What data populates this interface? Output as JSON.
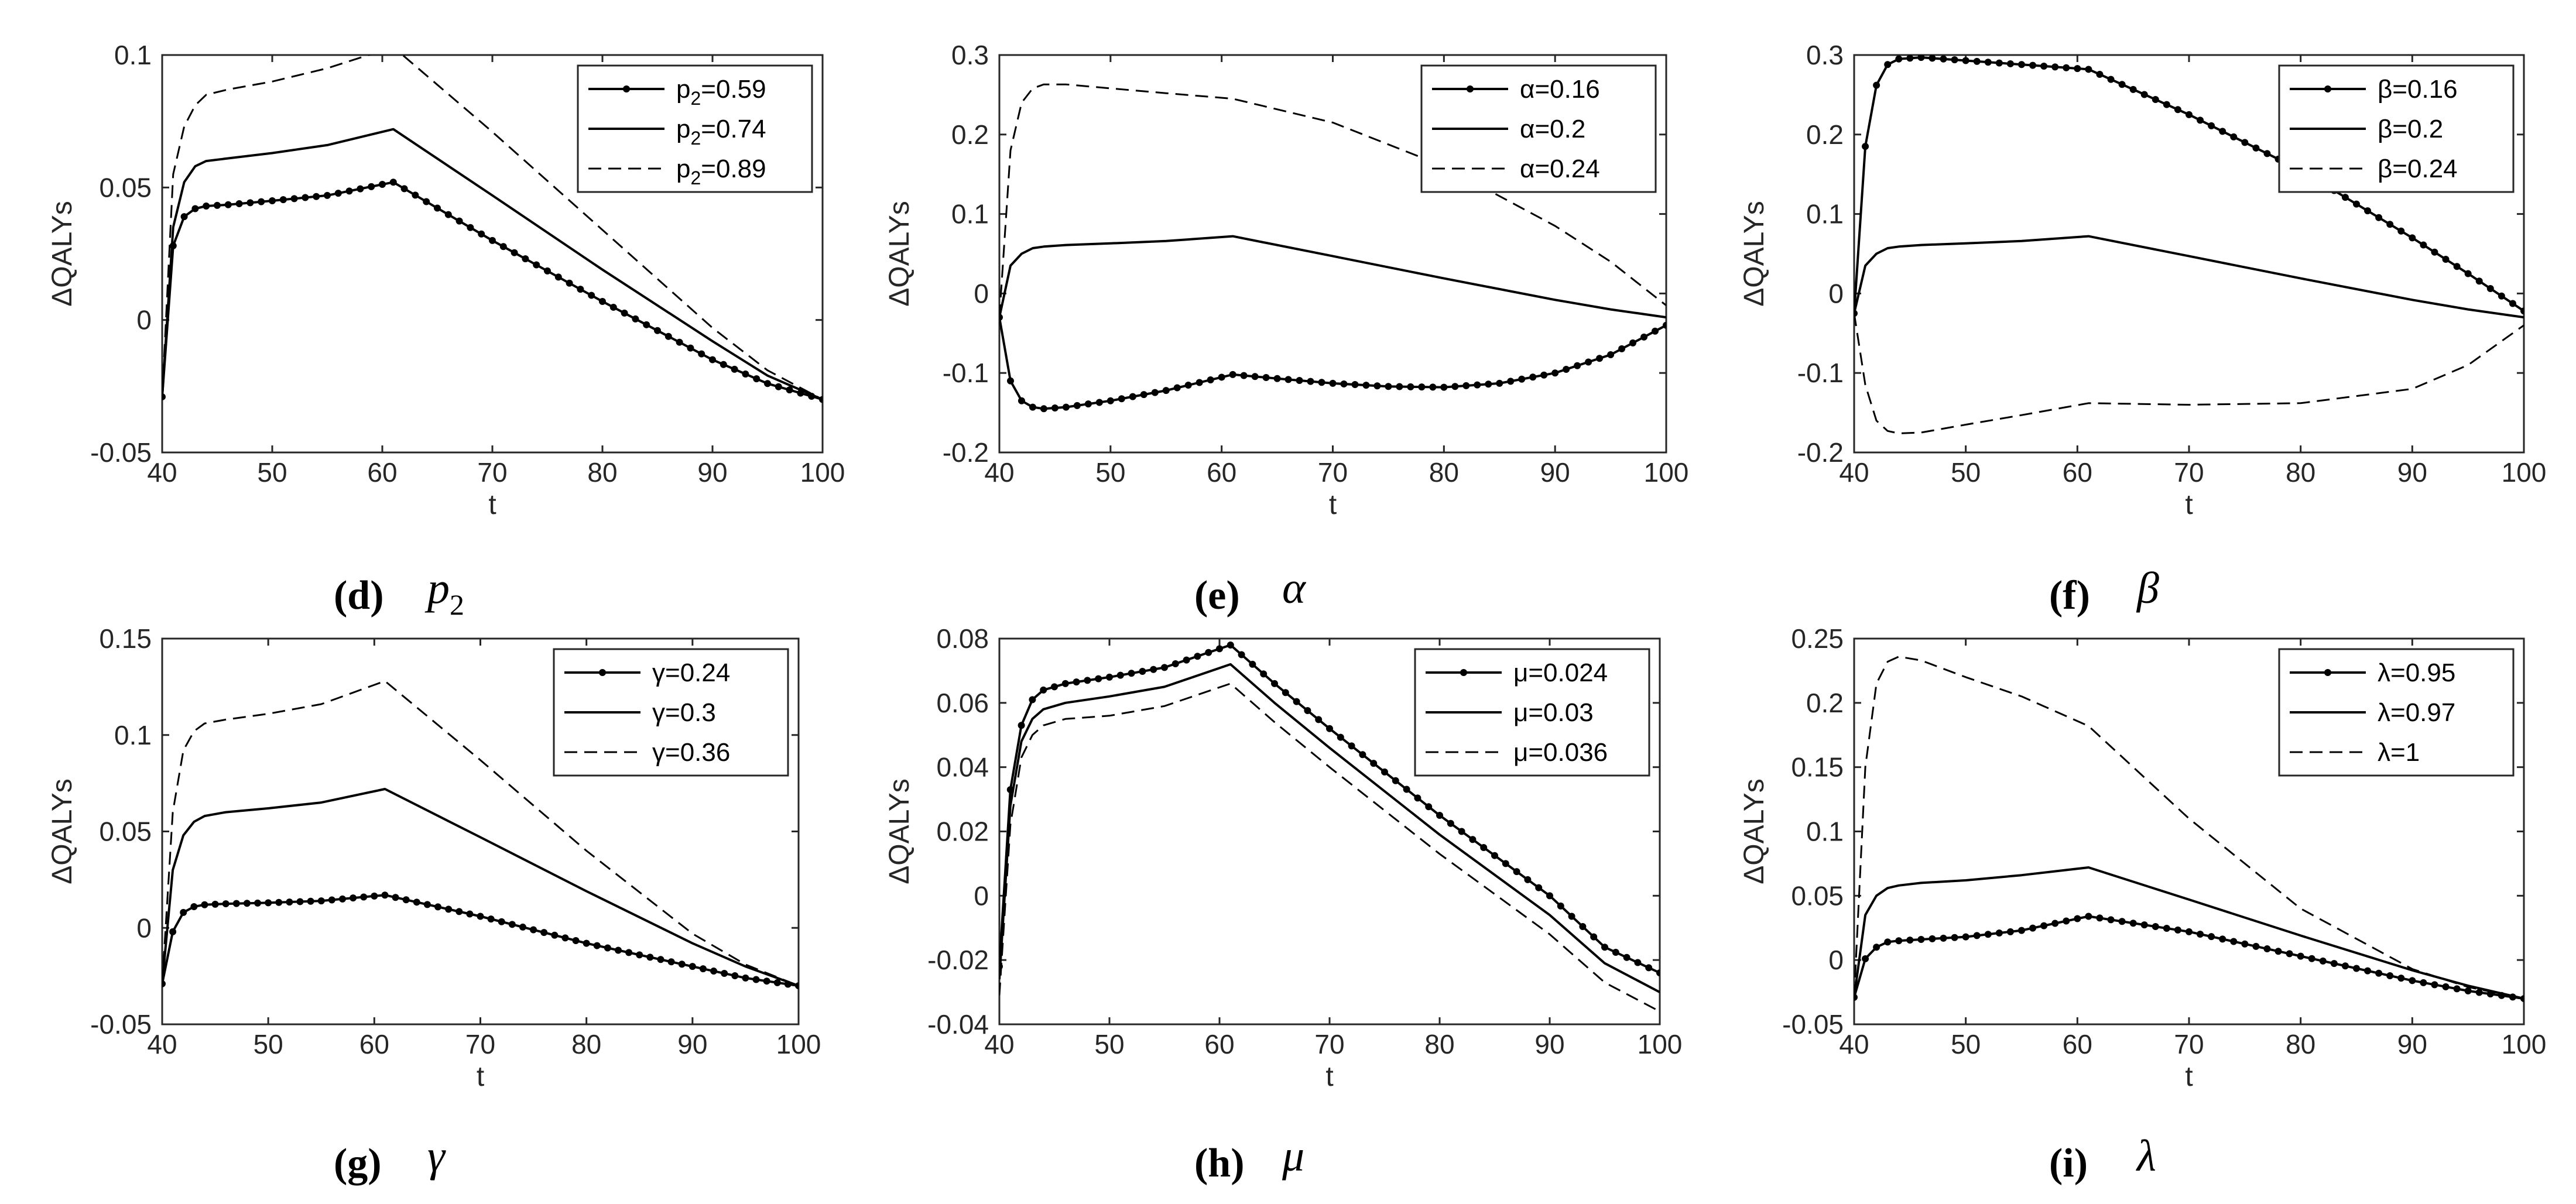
{
  "chart_data": [
    {
      "type": "line",
      "panel_label": "(d)",
      "param_symbol": "p",
      "param_subscript": "2",
      "xlabel": "t",
      "ylabel": "ΔQALYs",
      "xlim": [
        40,
        100
      ],
      "ylim": [
        -0.05,
        0.1
      ],
      "xticks": [
        40,
        50,
        60,
        70,
        80,
        90,
        100
      ],
      "xtick_labels": [
        "40",
        "50",
        "60",
        "70",
        "80",
        "90",
        "100"
      ],
      "yticks": [
        -0.05,
        0,
        0.05,
        0.1
      ],
      "ytick_labels": [
        "-0.05",
        "0",
        "0.05",
        "0.1"
      ],
      "legend_position": "top-right",
      "series": [
        {
          "name": "p",
          "name_sub": "2",
          "name_suffix": "=0.59",
          "style": "solid-dots",
          "x": [
            40,
            41,
            42,
            43,
            44,
            46,
            50,
            55,
            61,
            70,
            80,
            90,
            95,
            100
          ],
          "y": [
            -0.029,
            0.028,
            0.039,
            0.042,
            0.043,
            0.0435,
            0.045,
            0.047,
            0.052,
            0.03,
            0.007,
            -0.015,
            -0.024,
            -0.03
          ]
        },
        {
          "name": "p",
          "name_sub": "2",
          "name_suffix": "=0.74",
          "style": "solid",
          "x": [
            40,
            41,
            42,
            43,
            44,
            46,
            50,
            55,
            61,
            70,
            80,
            90,
            95,
            100
          ],
          "y": [
            -0.029,
            0.035,
            0.052,
            0.058,
            0.06,
            0.061,
            0.063,
            0.066,
            0.072,
            0.047,
            0.019,
            -0.008,
            -0.021,
            -0.03
          ]
        },
        {
          "name": "p",
          "name_sub": "2",
          "name_suffix": "=0.89",
          "style": "dashed",
          "x": [
            40,
            41,
            42,
            43,
            44,
            46,
            50,
            55,
            61,
            70,
            80,
            90,
            95,
            100
          ],
          "y": [
            -0.029,
            0.055,
            0.073,
            0.081,
            0.085,
            0.087,
            0.09,
            0.095,
            0.103,
            0.071,
            0.034,
            -0.003,
            -0.019,
            -0.03
          ]
        }
      ]
    },
    {
      "type": "line",
      "panel_label": "(e)",
      "param_symbol": "α",
      "param_subscript": "",
      "xlabel": "t",
      "ylabel": "ΔQALYs",
      "xlim": [
        40,
        100
      ],
      "ylim": [
        -0.2,
        0.3
      ],
      "xticks": [
        40,
        50,
        60,
        70,
        80,
        90,
        100
      ],
      "xtick_labels": [
        "40",
        "50",
        "60",
        "70",
        "80",
        "90",
        "100"
      ],
      "yticks": [
        -0.2,
        -0.1,
        0,
        0.1,
        0.2,
        0.3
      ],
      "ytick_labels": [
        "-0.2",
        "-0.1",
        "0",
        "0.1",
        "0.2",
        "0.3"
      ],
      "legend_position": "top-right",
      "series": [
        {
          "name": "α=0.16",
          "name_sub": "",
          "name_suffix": "",
          "style": "solid-dots",
          "x": [
            40,
            41,
            42,
            43,
            44,
            46,
            50,
            55,
            61,
            65,
            70,
            75,
            80,
            85,
            90,
            95,
            100
          ],
          "y": [
            -0.03,
            -0.11,
            -0.135,
            -0.143,
            -0.145,
            -0.143,
            -0.135,
            -0.122,
            -0.102,
            -0.107,
            -0.113,
            -0.117,
            -0.118,
            -0.113,
            -0.1,
            -0.077,
            -0.04
          ]
        },
        {
          "name": "α=0.2",
          "name_sub": "",
          "name_suffix": "",
          "style": "solid",
          "x": [
            40,
            41,
            42,
            43,
            44,
            46,
            50,
            55,
            61,
            70,
            80,
            90,
            95,
            100
          ],
          "y": [
            -0.03,
            0.035,
            0.05,
            0.057,
            0.059,
            0.061,
            0.063,
            0.066,
            0.072,
            0.047,
            0.019,
            -0.008,
            -0.02,
            -0.03
          ]
        },
        {
          "name": "α=0.24",
          "name_sub": "",
          "name_suffix": "",
          "style": "dashed",
          "x": [
            40,
            41,
            42,
            43,
            44,
            46,
            50,
            55,
            61,
            70,
            80,
            90,
            95,
            100
          ],
          "y": [
            -0.03,
            0.18,
            0.24,
            0.258,
            0.263,
            0.263,
            0.258,
            0.252,
            0.245,
            0.215,
            0.16,
            0.085,
            0.04,
            -0.015
          ]
        }
      ]
    },
    {
      "type": "line",
      "panel_label": "(f)",
      "param_symbol": "β",
      "param_subscript": "",
      "xlabel": "t",
      "ylabel": "ΔQALYs",
      "xlim": [
        40,
        100
      ],
      "ylim": [
        -0.2,
        0.3
      ],
      "xticks": [
        40,
        50,
        60,
        70,
        80,
        90,
        100
      ],
      "xtick_labels": [
        "40",
        "50",
        "60",
        "70",
        "80",
        "90",
        "100"
      ],
      "yticks": [
        -0.2,
        -0.1,
        0,
        0.1,
        0.2,
        0.3
      ],
      "ytick_labels": [
        "-0.2",
        "-0.1",
        "0",
        "0.1",
        "0.2",
        "0.3"
      ],
      "legend_position": "top-right",
      "series": [
        {
          "name": "β=0.16",
          "name_sub": "",
          "name_suffix": "",
          "style": "solid-dots",
          "x": [
            40,
            41,
            42,
            43,
            44,
            46,
            50,
            55,
            61,
            70,
            80,
            90,
            95,
            100
          ],
          "y": [
            -0.025,
            0.185,
            0.262,
            0.288,
            0.295,
            0.297,
            0.293,
            0.288,
            0.282,
            0.225,
            0.155,
            0.07,
            0.025,
            -0.022
          ]
        },
        {
          "name": "β=0.2",
          "name_sub": "",
          "name_suffix": "",
          "style": "solid",
          "x": [
            40,
            41,
            42,
            43,
            44,
            46,
            50,
            55,
            61,
            70,
            80,
            90,
            95,
            100
          ],
          "y": [
            -0.025,
            0.035,
            0.05,
            0.057,
            0.059,
            0.061,
            0.063,
            0.066,
            0.072,
            0.047,
            0.019,
            -0.008,
            -0.02,
            -0.03
          ]
        },
        {
          "name": "β=0.24",
          "name_sub": "",
          "name_suffix": "",
          "style": "dashed",
          "x": [
            40,
            41,
            42,
            43,
            44,
            46,
            50,
            55,
            61,
            70,
            80,
            90,
            95,
            100
          ],
          "y": [
            -0.025,
            -0.115,
            -0.16,
            -0.173,
            -0.176,
            -0.175,
            -0.165,
            -0.153,
            -0.138,
            -0.14,
            -0.138,
            -0.12,
            -0.09,
            -0.04
          ]
        }
      ]
    },
    {
      "type": "line",
      "panel_label": "(g)",
      "param_symbol": "γ",
      "param_subscript": "",
      "xlabel": "t",
      "ylabel": "ΔQALYs",
      "xlim": [
        40,
        100
      ],
      "ylim": [
        -0.05,
        0.15
      ],
      "xticks": [
        40,
        50,
        60,
        70,
        80,
        90,
        100
      ],
      "xtick_labels": [
        "40",
        "50",
        "60",
        "70",
        "80",
        "90",
        "100"
      ],
      "yticks": [
        -0.05,
        0,
        0.05,
        0.1,
        0.15
      ],
      "ytick_labels": [
        "-0.05",
        "0",
        "0.05",
        "0.1",
        "0.15"
      ],
      "legend_position": "top-right",
      "series": [
        {
          "name": "γ=0.24",
          "name_sub": "",
          "name_suffix": "",
          "style": "solid-dots",
          "x": [
            40,
            41,
            42,
            43,
            44,
            46,
            50,
            55,
            61,
            70,
            80,
            90,
            95,
            100
          ],
          "y": [
            -0.029,
            -0.002,
            0.008,
            0.011,
            0.012,
            0.0125,
            0.013,
            0.014,
            0.017,
            0.006,
            -0.008,
            -0.02,
            -0.026,
            -0.03
          ]
        },
        {
          "name": "γ=0.3",
          "name_sub": "",
          "name_suffix": "",
          "style": "solid",
          "x": [
            40,
            41,
            42,
            43,
            44,
            46,
            50,
            55,
            61,
            70,
            80,
            90,
            95,
            100
          ],
          "y": [
            -0.029,
            0.03,
            0.048,
            0.055,
            0.058,
            0.06,
            0.062,
            0.065,
            0.072,
            0.047,
            0.019,
            -0.008,
            -0.02,
            -0.03
          ]
        },
        {
          "name": "γ=0.36",
          "name_sub": "",
          "name_suffix": "",
          "style": "dashed",
          "x": [
            40,
            41,
            42,
            43,
            44,
            46,
            50,
            55,
            61,
            70,
            80,
            90,
            95,
            100
          ],
          "y": [
            -0.029,
            0.06,
            0.092,
            0.102,
            0.106,
            0.108,
            0.111,
            0.116,
            0.128,
            0.087,
            0.04,
            -0.003,
            -0.019,
            -0.03
          ]
        }
      ]
    },
    {
      "type": "line",
      "panel_label": "(h)",
      "param_symbol": "μ",
      "param_subscript": "",
      "xlabel": "t",
      "ylabel": "ΔQALYs",
      "xlim": [
        40,
        100
      ],
      "ylim": [
        -0.04,
        0.08
      ],
      "xticks": [
        40,
        50,
        60,
        70,
        80,
        90,
        100
      ],
      "xtick_labels": [
        "40",
        "50",
        "60",
        "70",
        "80",
        "90",
        "100"
      ],
      "yticks": [
        -0.04,
        -0.02,
        0,
        0.02,
        0.04,
        0.06,
        0.08
      ],
      "ytick_labels": [
        "-0.04",
        "-0.02",
        "0",
        "0.02",
        "0.04",
        "0.06",
        "0.08"
      ],
      "legend_position": "top-right",
      "series": [
        {
          "name": "μ=0.024",
          "name_sub": "",
          "name_suffix": "",
          "style": "solid-dots",
          "x": [
            40,
            41,
            42,
            43,
            44,
            46,
            50,
            55,
            61,
            65,
            70,
            80,
            90,
            95,
            100
          ],
          "y": [
            -0.022,
            0.033,
            0.053,
            0.061,
            0.064,
            0.066,
            0.068,
            0.071,
            0.078,
            0.066,
            0.052,
            0.025,
            0.0,
            -0.016,
            -0.024
          ]
        },
        {
          "name": "μ=0.03",
          "name_sub": "",
          "name_suffix": "",
          "style": "solid",
          "x": [
            40,
            41,
            42,
            43,
            44,
            46,
            50,
            55,
            61,
            65,
            70,
            80,
            90,
            95,
            100
          ],
          "y": [
            -0.026,
            0.028,
            0.048,
            0.055,
            0.058,
            0.06,
            0.062,
            0.065,
            0.072,
            0.06,
            0.046,
            0.019,
            -0.006,
            -0.021,
            -0.03
          ]
        },
        {
          "name": "μ=0.036",
          "name_sub": "",
          "name_suffix": "",
          "style": "dashed",
          "x": [
            40,
            41,
            42,
            43,
            44,
            46,
            50,
            55,
            61,
            65,
            70,
            80,
            90,
            95,
            100
          ],
          "y": [
            -0.031,
            0.022,
            0.043,
            0.05,
            0.053,
            0.055,
            0.056,
            0.059,
            0.066,
            0.054,
            0.04,
            0.013,
            -0.012,
            -0.027,
            -0.036
          ]
        }
      ]
    },
    {
      "type": "line",
      "panel_label": "(i)",
      "param_symbol": "λ",
      "param_subscript": "",
      "xlabel": "t",
      "ylabel": "ΔQALYs",
      "xlim": [
        40,
        100
      ],
      "ylim": [
        -0.05,
        0.25
      ],
      "xticks": [
        40,
        50,
        60,
        70,
        80,
        90,
        100
      ],
      "xtick_labels": [
        "40",
        "50",
        "60",
        "70",
        "80",
        "90",
        "100"
      ],
      "yticks": [
        -0.05,
        0,
        0.05,
        0.1,
        0.15,
        0.2,
        0.25
      ],
      "ytick_labels": [
        "-0.05",
        "0",
        "0.05",
        "0.1",
        "0.15",
        "0.2",
        "0.25"
      ],
      "legend_position": "top-right",
      "series": [
        {
          "name": "λ=0.95",
          "name_sub": "",
          "name_suffix": "",
          "style": "solid-dots",
          "x": [
            40,
            41,
            42,
            43,
            44,
            46,
            50,
            55,
            61,
            70,
            80,
            90,
            95,
            100
          ],
          "y": [
            -0.029,
            0.001,
            0.01,
            0.014,
            0.015,
            0.016,
            0.018,
            0.023,
            0.034,
            0.022,
            0.003,
            -0.016,
            -0.024,
            -0.03
          ]
        },
        {
          "name": "λ=0.97",
          "name_sub": "",
          "name_suffix": "",
          "style": "solid",
          "x": [
            40,
            41,
            42,
            43,
            44,
            46,
            50,
            55,
            61,
            70,
            80,
            90,
            95,
            100
          ],
          "y": [
            -0.029,
            0.035,
            0.05,
            0.056,
            0.058,
            0.06,
            0.062,
            0.066,
            0.072,
            0.047,
            0.019,
            -0.008,
            -0.02,
            -0.03
          ]
        },
        {
          "name": "λ=1",
          "name_sub": "",
          "name_suffix": "",
          "style": "dashed",
          "x": [
            40,
            41,
            42,
            43,
            44,
            46,
            50,
            55,
            61,
            70,
            80,
            90,
            95,
            100
          ],
          "y": [
            -0.029,
            0.15,
            0.215,
            0.232,
            0.236,
            0.233,
            0.22,
            0.205,
            0.182,
            0.11,
            0.04,
            -0.007,
            -0.021,
            -0.03
          ]
        }
      ]
    }
  ]
}
